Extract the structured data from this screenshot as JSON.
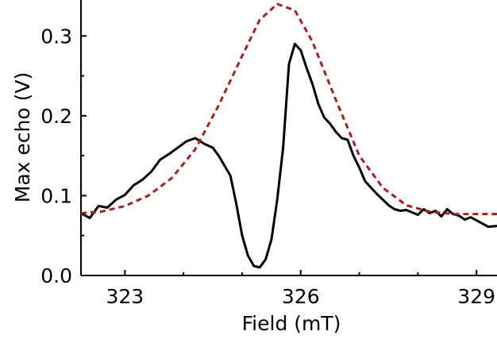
{
  "chart_data": {
    "type": "line",
    "xlabel": "Field (mT)",
    "ylabel": "Max echo (V)",
    "xlim": [
      322.25,
      329.35
    ],
    "ylim": [
      0.0,
      0.345
    ],
    "x_ticks": [
      323,
      326,
      329
    ],
    "x_tick_labels": [
      "323",
      "326",
      "329"
    ],
    "y_ticks": [
      0.0,
      0.1,
      0.2,
      0.3
    ],
    "y_tick_labels": [
      "0.0",
      "0.1",
      "0.2",
      "0.3"
    ],
    "grid": false,
    "series": [
      {
        "style": "solid",
        "color": "#000000",
        "x": [
          322.25,
          322.4,
          322.55,
          322.7,
          322.85,
          323.0,
          323.15,
          323.3,
          323.45,
          323.6,
          323.75,
          323.9,
          324.05,
          324.2,
          324.35,
          324.5,
          324.6,
          324.8,
          324.9,
          325.0,
          325.1,
          325.2,
          325.3,
          325.4,
          325.5,
          325.6,
          325.7,
          325.8,
          325.9,
          326.0,
          326.1,
          326.2,
          326.3,
          326.4,
          326.5,
          326.6,
          326.7,
          326.8,
          326.9,
          327.0,
          327.1,
          327.2,
          327.3,
          327.4,
          327.5,
          327.6,
          327.7,
          327.8,
          327.9,
          328.0,
          328.1,
          328.2,
          328.3,
          328.4,
          328.5,
          328.6,
          328.7,
          328.8,
          328.9,
          329.0,
          329.1,
          329.2,
          329.35
        ],
        "y": [
          0.078,
          0.072,
          0.087,
          0.085,
          0.095,
          0.101,
          0.113,
          0.12,
          0.13,
          0.145,
          0.152,
          0.16,
          0.168,
          0.172,
          0.165,
          0.16,
          0.15,
          0.125,
          0.09,
          0.05,
          0.025,
          0.012,
          0.01,
          0.02,
          0.045,
          0.095,
          0.16,
          0.265,
          0.29,
          0.282,
          0.26,
          0.24,
          0.215,
          0.198,
          0.19,
          0.18,
          0.172,
          0.17,
          0.15,
          0.135,
          0.118,
          0.11,
          0.102,
          0.095,
          0.088,
          0.083,
          0.081,
          0.082,
          0.079,
          0.076,
          0.083,
          0.078,
          0.081,
          0.074,
          0.083,
          0.077,
          0.075,
          0.07,
          0.073,
          0.069,
          0.065,
          0.061,
          0.062
        ]
      },
      {
        "style": "dashed",
        "color": "#a52020",
        "x": [
          322.25,
          322.6,
          323.0,
          323.4,
          323.8,
          324.2,
          324.6,
          325.0,
          325.3,
          325.6,
          325.9,
          326.2,
          326.6,
          327.0,
          327.4,
          327.8,
          328.2,
          328.6,
          329.0,
          329.35
        ],
        "y": [
          0.078,
          0.08,
          0.087,
          0.1,
          0.122,
          0.158,
          0.213,
          0.275,
          0.32,
          0.34,
          0.332,
          0.293,
          0.22,
          0.15,
          0.11,
          0.088,
          0.08,
          0.077,
          0.077,
          0.077
        ]
      }
    ]
  }
}
